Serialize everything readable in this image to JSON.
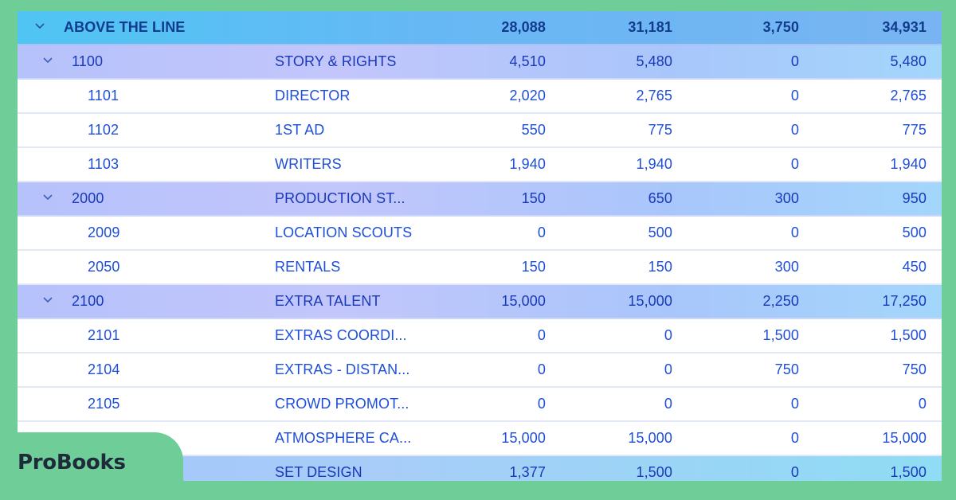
{
  "brand": {
    "name": "ProBooks"
  },
  "colors": {
    "page_background": "#6fce98",
    "header_row": "#5fbef4",
    "group_row": "#bcc5fb",
    "text": "#1e4fd8",
    "header_text": "#123b8e"
  },
  "budget": {
    "top": {
      "label": "ABOVE THE LINE",
      "v1": "28,088",
      "v2": "31,181",
      "v3": "3,750",
      "v4": "34,931",
      "icon": "chevron-down-icon"
    },
    "rows": [
      {
        "type": "group",
        "code": "1100",
        "name": "STORY & RIGHTS",
        "v1": "4,510",
        "v2": "5,480",
        "v3": "0",
        "v4": "5,480"
      },
      {
        "type": "item",
        "code": "1101",
        "name": "DIRECTOR",
        "v1": "2,020",
        "v2": "2,765",
        "v3": "0",
        "v4": "2,765"
      },
      {
        "type": "item",
        "code": "1102",
        "name": "1ST AD",
        "v1": "550",
        "v2": "775",
        "v3": "0",
        "v4": "775"
      },
      {
        "type": "item",
        "code": "1103",
        "name": "WRITERS",
        "v1": "1,940",
        "v2": "1,940",
        "v3": "0",
        "v4": "1,940"
      },
      {
        "type": "group",
        "code": "2000",
        "name": "PRODUCTION ST...",
        "v1": "150",
        "v2": "650",
        "v3": "300",
        "v4": "950"
      },
      {
        "type": "item",
        "code": "2009",
        "name": "LOCATION SCOUTS",
        "v1": "0",
        "v2": "500",
        "v3": "0",
        "v4": "500"
      },
      {
        "type": "item",
        "code": "2050",
        "name": "RENTALS",
        "v1": "150",
        "v2": "150",
        "v3": "300",
        "v4": "450"
      },
      {
        "type": "group",
        "code": "2100",
        "name": "EXTRA TALENT",
        "v1": "15,000",
        "v2": "15,000",
        "v3": "2,250",
        "v4": "17,250"
      },
      {
        "type": "item",
        "code": "2101",
        "name": "EXTRAS COORDI...",
        "v1": "0",
        "v2": "0",
        "v3": "1,500",
        "v4": "1,500"
      },
      {
        "type": "item",
        "code": "2104",
        "name": "EXTRAS - DISTAN...",
        "v1": "0",
        "v2": "0",
        "v3": "750",
        "v4": "750"
      },
      {
        "type": "item",
        "code": "2105",
        "name": "CROWD PROMOT...",
        "v1": "0",
        "v2": "0",
        "v3": "0",
        "v4": "0"
      },
      {
        "type": "item",
        "code": "",
        "name": "ATMOSPHERE CA...",
        "v1": "15,000",
        "v2": "15,000",
        "v3": "0",
        "v4": "15,000"
      },
      {
        "type": "group",
        "code": "",
        "name": "SET DESIGN",
        "v1": "1,377",
        "v2": "1,500",
        "v3": "0",
        "v4": "1,500"
      }
    ]
  }
}
